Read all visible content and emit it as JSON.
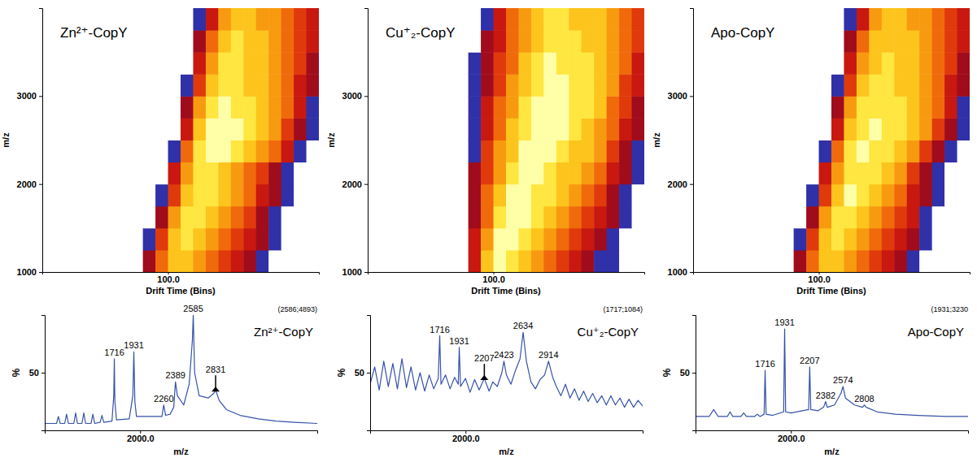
{
  "chart_data": [
    {
      "type": "heatmap",
      "title": "Zn²⁺-CopY",
      "xlabel": "Drift Time (Bins)",
      "ylabel": "m/z",
      "xlim": [
        0,
        220
      ],
      "xticks": [
        {
          "value": 100,
          "label": "100.0"
        }
      ],
      "ylim": [
        1000,
        4000
      ],
      "yticks": [
        1000,
        2000,
        3000
      ],
      "x_bins": [
        80,
        90,
        100,
        110,
        120,
        130,
        140,
        150,
        160,
        170,
        180,
        190,
        200,
        210,
        220
      ],
      "y_bins": [
        1000,
        1250,
        1500,
        1750,
        2000,
        2250,
        2500,
        2750,
        3000,
        3250,
        3500,
        3750,
        4000
      ],
      "cells": [
        [
          2,
          5,
          7,
          7,
          6,
          5,
          4,
          3,
          2,
          1,
          0,
          0,
          0,
          0
        ],
        [
          1,
          4,
          7,
          8,
          7,
          6,
          5,
          4,
          3,
          2,
          1,
          0,
          0,
          0
        ],
        [
          0,
          2,
          6,
          8,
          8,
          7,
          6,
          5,
          4,
          2,
          1,
          0,
          0,
          0
        ],
        [
          0,
          1,
          4,
          7,
          8,
          8,
          7,
          6,
          5,
          3,
          2,
          1,
          0,
          0
        ],
        [
          0,
          0,
          3,
          6,
          8,
          8,
          7,
          6,
          5,
          4,
          2,
          1,
          0,
          0
        ],
        [
          0,
          0,
          1,
          5,
          8,
          9,
          9,
          8,
          7,
          6,
          5,
          3,
          1,
          0
        ],
        [
          0,
          0,
          0,
          3,
          7,
          9,
          9,
          9,
          8,
          7,
          6,
          4,
          2,
          1
        ],
        [
          0,
          0,
          0,
          2,
          6,
          8,
          9,
          8,
          8,
          7,
          6,
          5,
          3,
          1
        ],
        [
          0,
          0,
          0,
          1,
          4,
          7,
          8,
          8,
          7,
          7,
          6,
          5,
          3,
          2
        ],
        [
          0,
          0,
          0,
          0,
          3,
          6,
          8,
          8,
          7,
          7,
          6,
          5,
          4,
          2
        ],
        [
          0,
          0,
          0,
          0,
          2,
          5,
          7,
          8,
          7,
          7,
          6,
          5,
          4,
          3
        ],
        [
          0,
          0,
          0,
          0,
          1,
          3,
          6,
          7,
          7,
          6,
          6,
          5,
          4,
          3
        ]
      ]
    },
    {
      "type": "heatmap",
      "title": "Cu⁺₂-CopY",
      "xlabel": "Drift Time (Bins)",
      "ylabel": "m/z",
      "xlim": [
        0,
        220
      ],
      "xticks": [
        {
          "value": 100,
          "label": "100.0"
        }
      ],
      "ylim": [
        1000,
        4000
      ],
      "yticks": [
        1000,
        2000,
        3000
      ],
      "x_bins": [
        80,
        90,
        100,
        110,
        120,
        130,
        140,
        150,
        160,
        170,
        180,
        190,
        200,
        210,
        220
      ],
      "y_bins": [
        1000,
        1250,
        1500,
        1750,
        2000,
        2250,
        2500,
        2750,
        3000,
        3250,
        3500,
        3750,
        4000
      ],
      "cells": [
        [
          3,
          7,
          9,
          8,
          7,
          6,
          5,
          4,
          3,
          2,
          1,
          1,
          0,
          0
        ],
        [
          3,
          6,
          9,
          9,
          8,
          7,
          6,
          5,
          4,
          3,
          2,
          1,
          0,
          0
        ],
        [
          2,
          5,
          8,
          9,
          9,
          8,
          7,
          6,
          5,
          4,
          3,
          2,
          1,
          0
        ],
        [
          2,
          5,
          7,
          9,
          9,
          8,
          8,
          7,
          6,
          5,
          4,
          2,
          1,
          0
        ],
        [
          2,
          4,
          6,
          8,
          9,
          9,
          8,
          7,
          7,
          6,
          5,
          3,
          2,
          1
        ],
        [
          1,
          4,
          6,
          7,
          9,
          9,
          9,
          8,
          7,
          7,
          6,
          4,
          2,
          1
        ],
        [
          1,
          3,
          5,
          7,
          8,
          9,
          9,
          9,
          8,
          7,
          6,
          5,
          3,
          2
        ],
        [
          1,
          3,
          5,
          6,
          8,
          9,
          9,
          9,
          8,
          8,
          7,
          5,
          4,
          2
        ],
        [
          1,
          2,
          4,
          6,
          7,
          8,
          9,
          9,
          8,
          8,
          7,
          6,
          4,
          3
        ],
        [
          1,
          2,
          4,
          5,
          7,
          8,
          9,
          8,
          8,
          8,
          7,
          6,
          5,
          3
        ],
        [
          0,
          2,
          3,
          5,
          6,
          7,
          8,
          8,
          8,
          7,
          7,
          6,
          5,
          4
        ],
        [
          0,
          1,
          3,
          5,
          6,
          7,
          8,
          8,
          7,
          7,
          7,
          6,
          5,
          4
        ]
      ]
    },
    {
      "type": "heatmap",
      "title": "Apo-CopY",
      "xlabel": "Drift Time (Bins)",
      "ylabel": "m/z",
      "xlim": [
        0,
        220
      ],
      "xticks": [
        {
          "value": 100,
          "label": "100.0"
        }
      ],
      "ylim": [
        1000,
        4000
      ],
      "yticks": [
        1000,
        2000,
        3000
      ],
      "x_bins": [
        80,
        90,
        100,
        110,
        120,
        130,
        140,
        150,
        160,
        170,
        180,
        190,
        200,
        210,
        220
      ],
      "y_bins": [
        1000,
        1250,
        1500,
        1750,
        2000,
        2250,
        2500,
        2750,
        3000,
        3250,
        3500,
        3750,
        4000
      ],
      "cells": [
        [
          2,
          5,
          7,
          7,
          6,
          5,
          4,
          3,
          2,
          1,
          0,
          0,
          0,
          0
        ],
        [
          1,
          4,
          7,
          8,
          7,
          6,
          5,
          4,
          3,
          2,
          1,
          0,
          0,
          0
        ],
        [
          0,
          2,
          6,
          8,
          8,
          7,
          6,
          5,
          4,
          3,
          1,
          0,
          0,
          0
        ],
        [
          0,
          1,
          4,
          7,
          9,
          8,
          7,
          6,
          5,
          3,
          2,
          1,
          0,
          0
        ],
        [
          0,
          0,
          3,
          6,
          8,
          8,
          8,
          7,
          6,
          4,
          2,
          1,
          0,
          0
        ],
        [
          0,
          0,
          1,
          5,
          8,
          9,
          8,
          8,
          7,
          6,
          4,
          2,
          1,
          0
        ],
        [
          0,
          0,
          0,
          3,
          7,
          8,
          9,
          8,
          8,
          7,
          6,
          4,
          2,
          1
        ],
        [
          0,
          0,
          0,
          2,
          6,
          8,
          8,
          8,
          8,
          7,
          6,
          5,
          3,
          1
        ],
        [
          0,
          0,
          0,
          1,
          4,
          7,
          8,
          8,
          7,
          7,
          6,
          5,
          3,
          2
        ],
        [
          0,
          0,
          0,
          0,
          3,
          6,
          7,
          8,
          7,
          7,
          6,
          5,
          4,
          2
        ],
        [
          0,
          0,
          0,
          0,
          2,
          5,
          7,
          7,
          7,
          7,
          6,
          5,
          4,
          3
        ],
        [
          0,
          0,
          0,
          0,
          1,
          3,
          6,
          7,
          7,
          6,
          6,
          5,
          4,
          3
        ]
      ]
    },
    {
      "type": "line",
      "title": "Zn²⁺-CopY",
      "subtitle": "(2586;4893)",
      "xlabel": "m/z",
      "ylabel": "%",
      "color": "#3552a8",
      "xlim": [
        950,
        3950
      ],
      "xticks": [
        {
          "value": 2000,
          "label": "2000.0"
        }
      ],
      "ylim": [
        0,
        100
      ],
      "yticks": [
        50
      ],
      "x": [
        950,
        1000,
        1080,
        1100,
        1120,
        1170,
        1190,
        1210,
        1270,
        1290,
        1310,
        1360,
        1380,
        1400,
        1460,
        1480,
        1500,
        1560,
        1580,
        1600,
        1690,
        1710,
        1716,
        1722,
        1740,
        1880,
        1920,
        1931,
        1942,
        1960,
        2150,
        2240,
        2260,
        2280,
        2330,
        2370,
        2389,
        2410,
        2480,
        2540,
        2575,
        2585,
        2600,
        2650,
        2750,
        2810,
        2831,
        2870,
        2950,
        3100,
        3300,
        3500,
        3700,
        3950
      ],
      "values": [
        6,
        6,
        6,
        12,
        6,
        6,
        14,
        6,
        6,
        15,
        6,
        6,
        15,
        6,
        6,
        14,
        6,
        7,
        13,
        7,
        8,
        30,
        62,
        25,
        9,
        10,
        30,
        68,
        25,
        12,
        12,
        12,
        22,
        13,
        14,
        20,
        42,
        30,
        22,
        40,
        78,
        100,
        50,
        30,
        28,
        32,
        35,
        26,
        18,
        13,
        10,
        8,
        7,
        6
      ],
      "annotations": [
        {
          "text": "1716",
          "x": 1716,
          "y": 62
        },
        {
          "text": "1931",
          "x": 1931,
          "y": 68
        },
        {
          "text": "2260",
          "x": 2260,
          "y": 22
        },
        {
          "text": "2389",
          "x": 2389,
          "y": 42
        },
        {
          "text": "2585",
          "x": 2585,
          "y": 100
        },
        {
          "text": "2831",
          "x": 2831,
          "y": 35,
          "marker": "arrow"
        }
      ]
    },
    {
      "type": "line",
      "title": "Cu⁺₂-CopY",
      "subtitle": "(1717;1084)",
      "xlabel": "m/z",
      "ylabel": "%",
      "color": "#3552a8",
      "xlim": [
        950,
        3950
      ],
      "xticks": [
        {
          "value": 2000,
          "label": "2000.0"
        }
      ],
      "ylim": [
        0,
        100
      ],
      "yticks": [
        50
      ],
      "x": [
        950,
        1000,
        1050,
        1100,
        1150,
        1200,
        1250,
        1300,
        1350,
        1400,
        1450,
        1500,
        1550,
        1600,
        1650,
        1700,
        1716,
        1730,
        1780,
        1830,
        1880,
        1920,
        1931,
        1945,
        2000,
        2050,
        2100,
        2150,
        2207,
        2260,
        2300,
        2350,
        2400,
        2423,
        2450,
        2500,
        2550,
        2600,
        2634,
        2670,
        2720,
        2770,
        2820,
        2870,
        2914,
        2960,
        3000,
        3050,
        3100,
        3150,
        3200,
        3250,
        3300,
        3350,
        3400,
        3450,
        3500,
        3550,
        3600,
        3650,
        3700,
        3750,
        3800,
        3850,
        3900,
        3950
      ],
      "values": [
        40,
        55,
        35,
        60,
        38,
        58,
        36,
        62,
        37,
        55,
        35,
        50,
        34,
        48,
        36,
        45,
        82,
        40,
        48,
        36,
        46,
        40,
        72,
        38,
        45,
        33,
        44,
        35,
        45,
        34,
        42,
        38,
        50,
        60,
        48,
        40,
        52,
        62,
        85,
        60,
        42,
        36,
        44,
        48,
        60,
        46,
        38,
        30,
        40,
        28,
        36,
        26,
        34,
        25,
        32,
        24,
        30,
        22,
        30,
        22,
        28,
        20,
        27,
        20,
        26,
        21
      ],
      "annotations": [
        {
          "text": "1716",
          "x": 1716,
          "y": 82
        },
        {
          "text": "1931",
          "x": 1931,
          "y": 72
        },
        {
          "text": "2207",
          "x": 2207,
          "y": 45,
          "marker": "arrow"
        },
        {
          "text": "2423",
          "x": 2423,
          "y": 60
        },
        {
          "text": "2634",
          "x": 2634,
          "y": 85
        },
        {
          "text": "2914",
          "x": 2914,
          "y": 60
        }
      ]
    },
    {
      "type": "line",
      "title": "Apo-CopY",
      "subtitle": "(1931;3230",
      "xlabel": "m/z",
      "ylabel": "%",
      "color": "#3552a8",
      "xlim": [
        950,
        3950
      ],
      "xticks": [
        {
          "value": 2000,
          "label": "2000.0"
        }
      ],
      "ylim": [
        0,
        100
      ],
      "yticks": [
        50
      ],
      "x": [
        950,
        1000,
        1100,
        1150,
        1200,
        1300,
        1330,
        1360,
        1450,
        1480,
        1510,
        1600,
        1630,
        1660,
        1705,
        1716,
        1727,
        1800,
        1920,
        1931,
        1942,
        2000,
        2195,
        2207,
        2219,
        2300,
        2360,
        2382,
        2400,
        2480,
        2550,
        2574,
        2600,
        2700,
        2790,
        2808,
        2830,
        2950,
        3150,
        3400,
        3700,
        3950
      ],
      "values": [
        12,
        12,
        12,
        18,
        12,
        12,
        16,
        12,
        12,
        15,
        12,
        12,
        14,
        12,
        14,
        52,
        14,
        13,
        16,
        88,
        16,
        15,
        18,
        55,
        18,
        17,
        20,
        25,
        20,
        22,
        32,
        38,
        28,
        22,
        20,
        22,
        20,
        16,
        14,
        13,
        12,
        12
      ],
      "annotations": [
        {
          "text": "1716",
          "x": 1716,
          "y": 52
        },
        {
          "text": "1931",
          "x": 1931,
          "y": 88
        },
        {
          "text": "2207",
          "x": 2207,
          "y": 55
        },
        {
          "text": "2382",
          "x": 2382,
          "y": 25
        },
        {
          "text": "2574",
          "x": 2574,
          "y": 38
        },
        {
          "text": "2808",
          "x": 2808,
          "y": 22
        }
      ]
    }
  ]
}
